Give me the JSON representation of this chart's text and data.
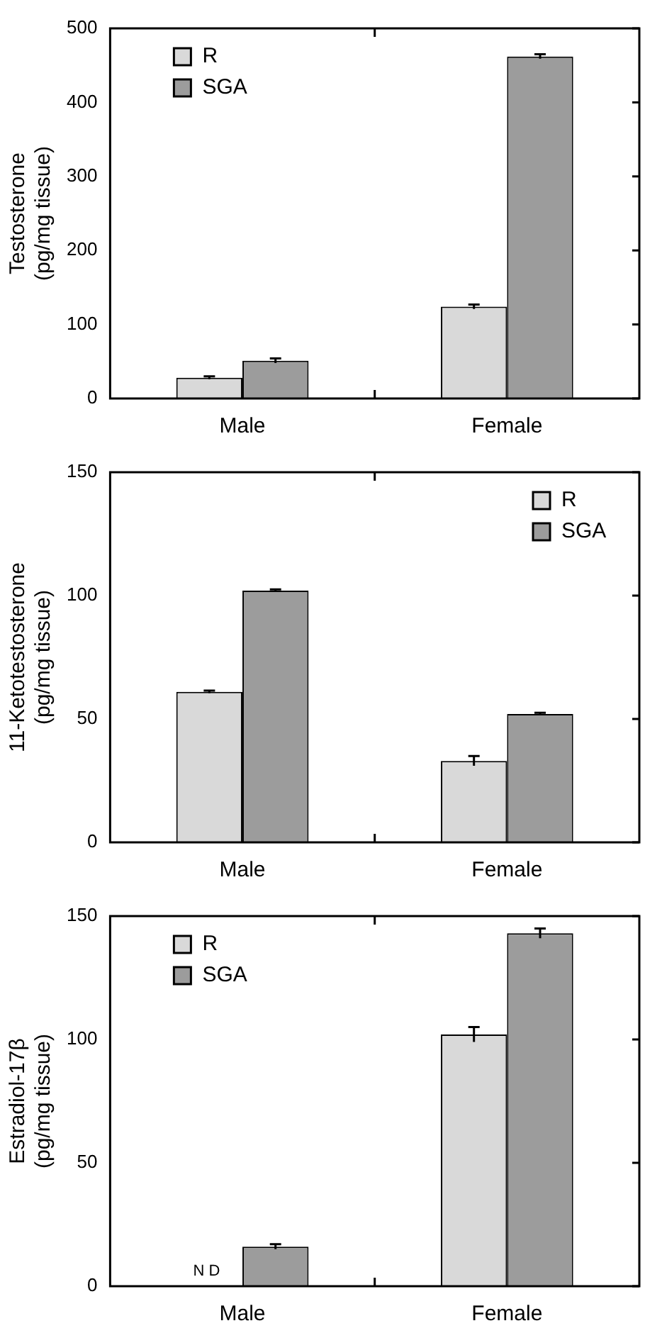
{
  "chart_data": [
    {
      "type": "bar",
      "ylabel": "Testosterone\n(pg/mg tissue)",
      "categories": [
        "Male",
        "Female"
      ],
      "series": [
        {
          "name": "R",
          "color": "#d9d9d9",
          "values": [
            28,
            124
          ],
          "errors": [
            2,
            3
          ]
        },
        {
          "name": "SGA",
          "color": "#9c9c9c",
          "values": [
            51,
            462
          ],
          "errors": [
            3,
            3
          ]
        }
      ],
      "ylim": [
        0,
        500
      ],
      "yticks": [
        0,
        100,
        200,
        300,
        400,
        500
      ],
      "legend": "top left"
    },
    {
      "type": "bar",
      "ylabel": "11-Ketotestosterone\n(pg/mg tissue)",
      "categories": [
        "Male",
        "Female"
      ],
      "series": [
        {
          "name": "R",
          "color": "#d9d9d9",
          "values": [
            61,
            33
          ],
          "errors": [
            0.5,
            2
          ]
        },
        {
          "name": "SGA",
          "color": "#9c9c9c",
          "values": [
            102,
            52
          ],
          "errors": [
            0.5,
            0.5
          ]
        }
      ],
      "ylim": [
        0,
        150
      ],
      "yticks": [
        0,
        50,
        100,
        150
      ],
      "legend": "top right"
    },
    {
      "type": "bar",
      "ylabel": "Estradiol-17β\n(pg/mg tissue)",
      "categories": [
        "Male",
        "Female"
      ],
      "series": [
        {
          "name": "R",
          "color": "#d9d9d9",
          "values": [
            null,
            102
          ],
          "errors": [
            null,
            3
          ]
        },
        {
          "name": "SGA",
          "color": "#9c9c9c",
          "values": [
            16,
            143
          ],
          "errors": [
            1,
            2
          ]
        }
      ],
      "ylim": [
        0,
        150
      ],
      "yticks": [
        0,
        50,
        100,
        150
      ],
      "legend": "top left",
      "annotations": [
        {
          "text": "N D",
          "x": "Male",
          "y": 0
        }
      ]
    }
  ]
}
